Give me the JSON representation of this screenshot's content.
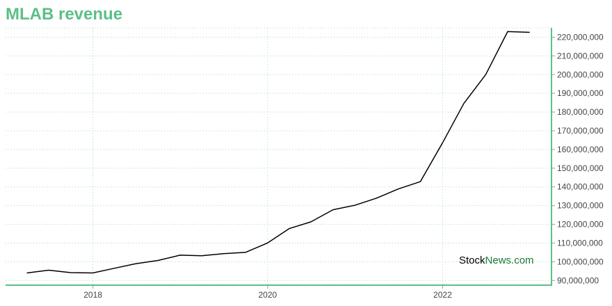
{
  "title": "MLAB revenue",
  "watermark": {
    "part1": "Stock",
    "part2": "News.com"
  },
  "colors": {
    "title": "#5cbf87",
    "axis": "#5cbf87",
    "grid": "#9fd8b9",
    "line": "#000000",
    "watermark_green": "#1a7a3a"
  },
  "chart_data": {
    "type": "line",
    "title": "MLAB revenue",
    "xlabel": "",
    "ylabel": "",
    "x_ticks": [
      "2018",
      "2020",
      "2022"
    ],
    "y_ticks": [
      "90,000,000",
      "100,000,000",
      "110,000,000",
      "120,000,000",
      "130,000,000",
      "140,000,000",
      "150,000,000",
      "160,000,000",
      "170,000,000",
      "180,000,000",
      "190,000,000",
      "200,000,000",
      "210,000,000",
      "220,000,000"
    ],
    "xlim": [
      "2017-01-01",
      "2023-04-01"
    ],
    "ylim": [
      87500000,
      225000000
    ],
    "grid": true,
    "y_axis_side": "right",
    "series": [
      {
        "points": [
          [
            "2017-03-31",
            94000000
          ],
          [
            "2017-06-30",
            95500000
          ],
          [
            "2017-09-30",
            94200000
          ],
          [
            "2017-12-31",
            94000000
          ],
          [
            "2018-03-31",
            96500000
          ],
          [
            "2018-06-30",
            99000000
          ],
          [
            "2018-09-30",
            100700000
          ],
          [
            "2018-12-31",
            103500000
          ],
          [
            "2019-03-31",
            103200000
          ],
          [
            "2019-06-30",
            104300000
          ],
          [
            "2019-09-30",
            105000000
          ],
          [
            "2019-12-31",
            110000000
          ],
          [
            "2020-03-31",
            117700000
          ],
          [
            "2020-06-30",
            121300000
          ],
          [
            "2020-09-30",
            127800000
          ],
          [
            "2020-12-31",
            130200000
          ],
          [
            "2021-03-31",
            134000000
          ],
          [
            "2021-06-30",
            138900000
          ],
          [
            "2021-09-30",
            142800000
          ],
          [
            "2021-12-31",
            163400000
          ],
          [
            "2022-03-31",
            184600000
          ],
          [
            "2022-06-30",
            200000000
          ],
          [
            "2022-09-30",
            223000000
          ],
          [
            "2022-12-31",
            222600000
          ]
        ]
      }
    ]
  }
}
